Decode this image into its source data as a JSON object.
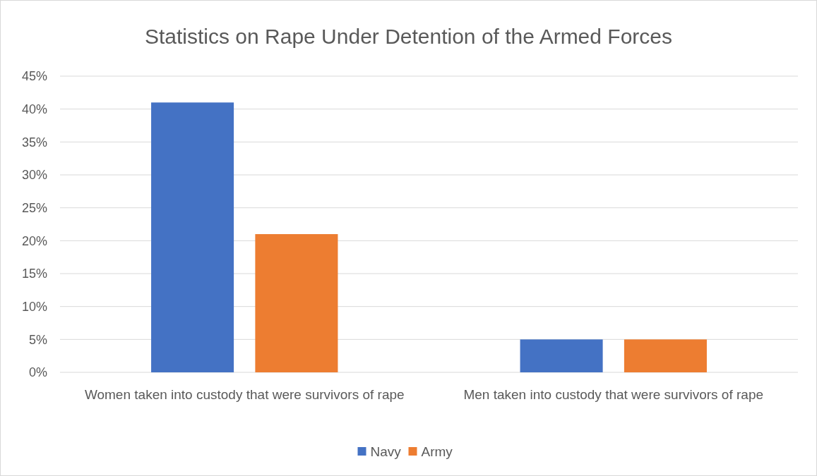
{
  "chart_data": {
    "type": "bar",
    "title": "Statistics on Rape Under Detention of the Armed Forces",
    "categories": [
      "Women taken into custody that were survivors of rape",
      "Men taken into custody that were survivors of rape"
    ],
    "series": [
      {
        "name": "Navy",
        "color": "#4472c4",
        "values": [
          41,
          5
        ]
      },
      {
        "name": "Army",
        "color": "#ed7d31",
        "values": [
          21,
          5
        ]
      }
    ],
    "ylim": [
      0,
      45
    ],
    "yticks": [
      {
        "value": 0,
        "label": "0%"
      },
      {
        "value": 5,
        "label": "5%"
      },
      {
        "value": 10,
        "label": "10%"
      },
      {
        "value": 15,
        "label": "15%"
      },
      {
        "value": 20,
        "label": "20%"
      },
      {
        "value": 25,
        "label": "25%"
      },
      {
        "value": 30,
        "label": "30%"
      },
      {
        "value": 35,
        "label": "35%"
      },
      {
        "value": 40,
        "label": "40%"
      },
      {
        "value": 45,
        "label": "45%"
      }
    ],
    "grid": "y",
    "legend": "bottom"
  }
}
